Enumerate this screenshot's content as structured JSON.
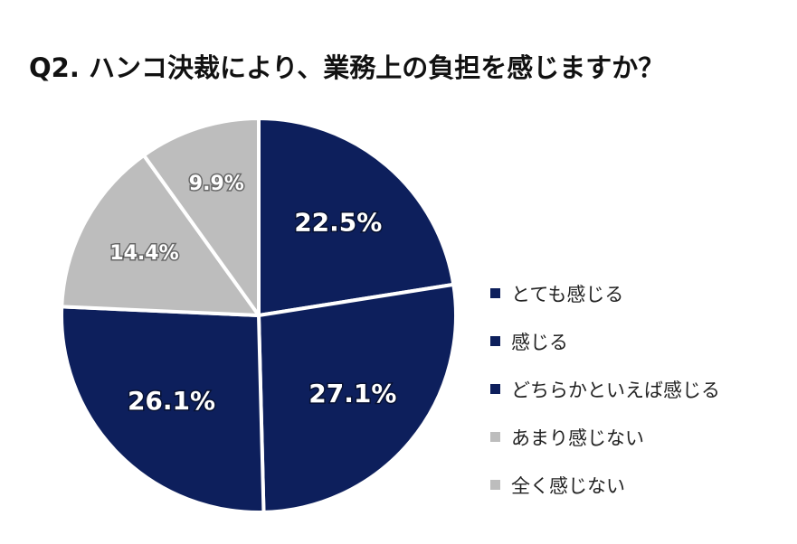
{
  "chart_data": {
    "type": "pie",
    "title": "Q2. ハンコ決裁により、業務上の負担を感じますか？",
    "categories": [
      "とても感じる",
      "感じる",
      "どちらかといえば感じる",
      "あまり感じない",
      "全く感じない"
    ],
    "values": [
      22.5,
      27.1,
      26.1,
      14.4,
      9.9
    ],
    "labels": [
      "22.5%",
      "27.1%",
      "26.1%",
      "14.4%",
      "9.9%"
    ],
    "colors": [
      "#0d1f5c",
      "#0d1f5c",
      "#0d1f5c",
      "#bdbdbd",
      "#bdbdbd"
    ],
    "legend": "right"
  }
}
